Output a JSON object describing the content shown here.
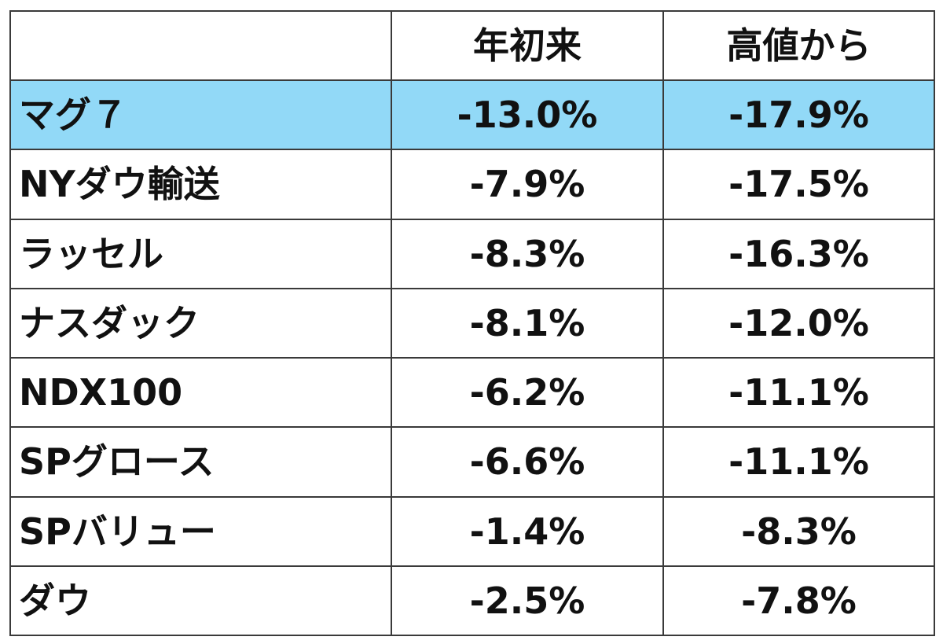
{
  "chart_data": {
    "type": "table",
    "columns": [
      "",
      "年初来",
      "高値から"
    ],
    "highlight_color": "#92d9f7",
    "rows": [
      {
        "name": "マグ７",
        "ytd": "-13.0%",
        "from_high": "-17.9%",
        "highlight": true
      },
      {
        "name": "NYダウ輸送",
        "ytd": "-7.9%",
        "from_high": "-17.5%",
        "highlight": false
      },
      {
        "name": "ラッセル",
        "ytd": "-8.3%",
        "from_high": "-16.3%",
        "highlight": false
      },
      {
        "name": "ナスダック",
        "ytd": "-8.1%",
        "from_high": "-12.0%",
        "highlight": false
      },
      {
        "name": "NDX100",
        "ytd": "-6.2%",
        "from_high": "-11.1%",
        "highlight": false
      },
      {
        "name": "SPグロース",
        "ytd": "-6.6%",
        "from_high": "-11.1%",
        "highlight": false
      },
      {
        "name": "SPバリュー",
        "ytd": "-1.4%",
        "from_high": "-8.3%",
        "highlight": false
      },
      {
        "name": "ダウ",
        "ytd": "-2.5%",
        "from_high": "-7.8%",
        "highlight": false
      }
    ]
  }
}
